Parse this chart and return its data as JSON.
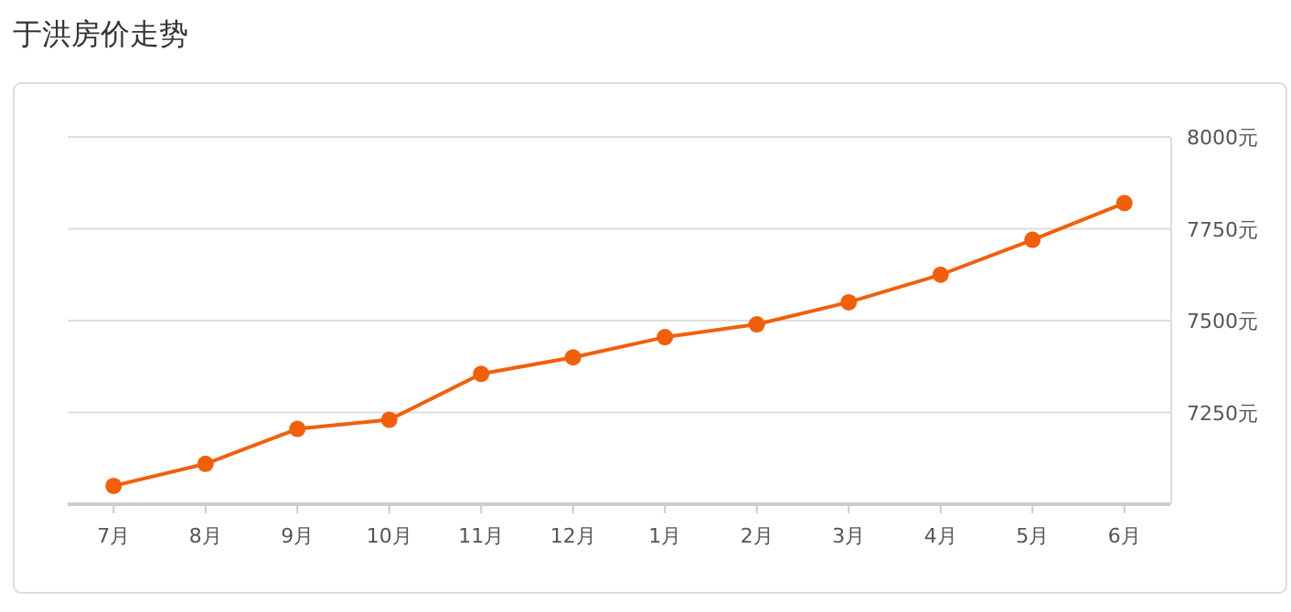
{
  "chart_data": {
    "type": "line",
    "title": "于洪房价走势",
    "categories": [
      "7月",
      "8月",
      "9月",
      "10月",
      "11月",
      "12月",
      "1月",
      "2月",
      "3月",
      "4月",
      "5月",
      "6月"
    ],
    "series": [
      {
        "color": "#f25f0a",
        "values": [
          7050,
          7110,
          7205,
          7230,
          7355,
          7400,
          7455,
          7490,
          7550,
          7625,
          7720,
          7820
        ]
      }
    ],
    "ylim": [
      7000,
      8000
    ],
    "yticks": [
      {
        "value": 7250,
        "label": "7250元"
      },
      {
        "value": 7500,
        "label": "7500元"
      },
      {
        "value": 7750,
        "label": "7750元"
      },
      {
        "value": 8000,
        "label": "8000元"
      }
    ],
    "grid": "y",
    "marker": "circle",
    "line_style": "solid"
  }
}
